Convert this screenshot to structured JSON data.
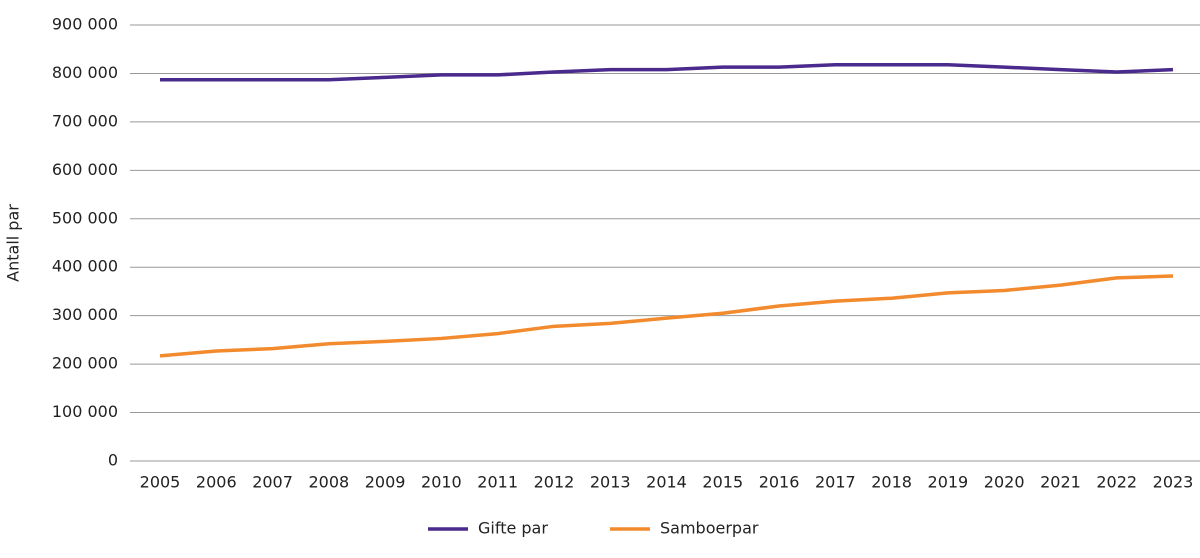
{
  "chart_data": {
    "type": "line",
    "y_label": "Antall par",
    "x": [
      2005,
      2006,
      2007,
      2008,
      2009,
      2010,
      2011,
      2012,
      2013,
      2014,
      2015,
      2016,
      2017,
      2018,
      2019,
      2020,
      2021,
      2022,
      2023
    ],
    "xlim": [
      2005,
      2023
    ],
    "series": [
      {
        "name": "Gifte par",
        "color": "#4a2a8c",
        "values": [
          787000,
          787000,
          787000,
          787000,
          792000,
          797000,
          797000,
          803000,
          808000,
          808000,
          813000,
          813000,
          818000,
          818000,
          818000,
          813000,
          808000,
          803000,
          808000
        ]
      },
      {
        "name": "Samboerpar",
        "color": "#f28a2e",
        "values": [
          217000,
          227000,
          232000,
          242000,
          247000,
          253000,
          263000,
          278000,
          284000,
          295000,
          305000,
          320000,
          330000,
          336000,
          347000,
          352000,
          363000,
          378000,
          382000
        ]
      }
    ],
    "ylim": [
      0,
      900000
    ],
    "yticks": [
      0,
      {
        "value": 100000,
        "label": "100 000"
      },
      {
        "value": 200000,
        "label": "200 000"
      },
      {
        "value": 300000,
        "label": "300 000"
      },
      {
        "value": 400000,
        "label": "400 000"
      },
      {
        "value": 500000,
        "label": "500 000"
      },
      {
        "value": 600000,
        "label": "600 000"
      },
      {
        "value": 700000,
        "label": "700 000"
      },
      {
        "value": 800000,
        "label": "800 000"
      },
      {
        "value": 900000,
        "label": "900 000"
      }
    ],
    "grid": true,
    "legend": "bottom"
  }
}
